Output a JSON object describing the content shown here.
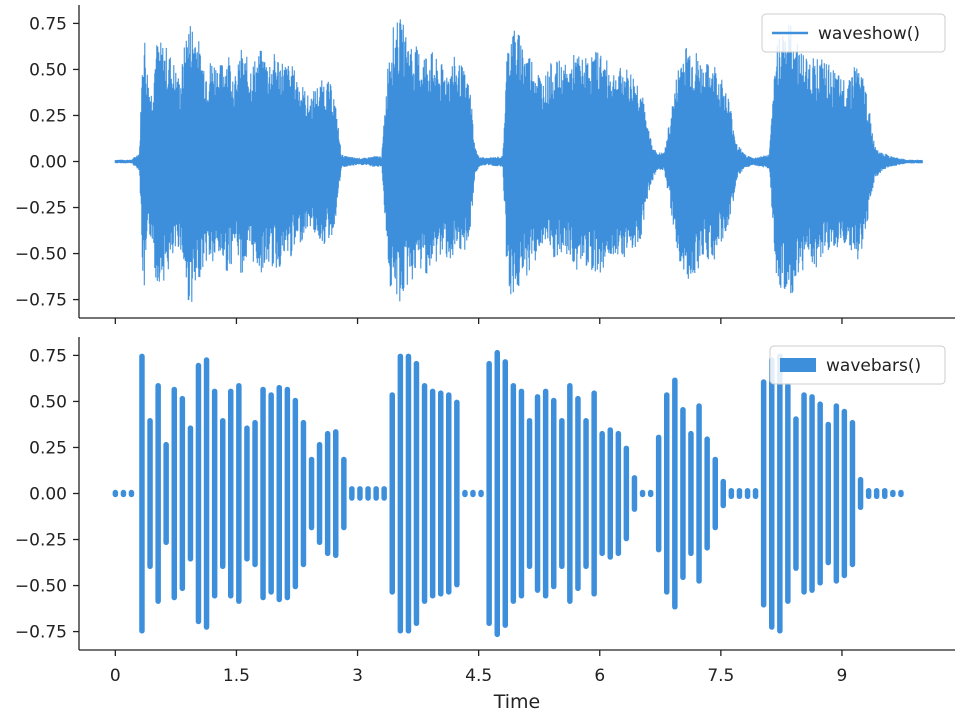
{
  "chart_data": [
    {
      "type": "line",
      "legend": {
        "entries": [
          "waveshow()"
        ],
        "placement": "top-right"
      },
      "color": "#3d8fdb",
      "xlim": [
        -0.45,
        10.4
      ],
      "ylim": [
        -0.85,
        0.85
      ],
      "yticks": [
        -0.75,
        -0.5,
        -0.25,
        0.0,
        0.25,
        0.5,
        0.75
      ],
      "ytick_labels": [
        "−0.75",
        "−0.50",
        "−0.25",
        "0.00",
        "0.25",
        "0.50",
        "0.75"
      ],
      "xticks": [
        0,
        1.5,
        3,
        4.5,
        6,
        7.5,
        9
      ],
      "xtick_labels_visible": false,
      "grid": false,
      "series": [
        {
          "x": [
            0.0,
            0.2,
            0.3,
            0.35,
            0.4,
            0.45,
            0.5,
            0.6,
            0.7,
            0.8,
            0.9,
            1.0,
            1.05,
            1.1,
            1.15,
            1.2,
            1.3,
            1.4,
            1.5,
            1.55,
            1.6,
            1.7,
            1.8,
            1.9,
            2.0,
            2.1,
            2.2,
            2.3,
            2.4,
            2.5,
            2.6,
            2.7,
            2.75,
            2.8,
            2.85,
            3.0,
            3.1,
            3.2,
            3.3,
            3.4,
            3.45,
            3.5,
            3.55,
            3.6,
            3.7,
            3.8,
            3.9,
            4.0,
            4.1,
            4.2,
            4.3,
            4.4,
            4.45,
            4.5,
            4.6,
            4.8,
            4.85,
            4.9,
            5.0,
            5.1,
            5.2,
            5.3,
            5.4,
            5.5,
            5.6,
            5.7,
            5.8,
            5.9,
            6.0,
            6.1,
            6.2,
            6.3,
            6.4,
            6.5,
            6.6,
            6.7,
            6.8,
            6.9,
            7.0,
            7.1,
            7.2,
            7.3,
            7.4,
            7.5,
            7.6,
            7.7,
            7.8,
            7.9,
            8.0,
            8.1,
            8.2,
            8.3,
            8.4,
            8.5,
            8.6,
            8.7,
            8.8,
            8.9,
            9.0,
            9.1,
            9.2,
            9.3,
            9.4,
            9.5,
            9.6,
            9.7,
            9.8,
            10.0
          ],
          "envelope_amplitude": [
            0.01,
            0.01,
            0.05,
            0.78,
            0.5,
            0.4,
            0.66,
            0.65,
            0.58,
            0.45,
            0.78,
            0.76,
            0.62,
            0.57,
            0.54,
            0.58,
            0.53,
            0.62,
            0.45,
            0.63,
            0.58,
            0.55,
            0.61,
            0.57,
            0.6,
            0.55,
            0.52,
            0.44,
            0.35,
            0.42,
            0.46,
            0.4,
            0.24,
            0.04,
            0.03,
            0.02,
            0.02,
            0.03,
            0.03,
            0.7,
            0.74,
            0.77,
            0.78,
            0.7,
            0.64,
            0.6,
            0.62,
            0.54,
            0.52,
            0.57,
            0.52,
            0.4,
            0.09,
            0.03,
            0.02,
            0.03,
            0.6,
            0.76,
            0.7,
            0.62,
            0.55,
            0.45,
            0.54,
            0.55,
            0.52,
            0.6,
            0.56,
            0.59,
            0.62,
            0.54,
            0.5,
            0.52,
            0.49,
            0.44,
            0.18,
            0.05,
            0.05,
            0.32,
            0.6,
            0.66,
            0.6,
            0.52,
            0.56,
            0.47,
            0.35,
            0.1,
            0.04,
            0.02,
            0.03,
            0.04,
            0.7,
            0.76,
            0.74,
            0.6,
            0.57,
            0.58,
            0.54,
            0.5,
            0.45,
            0.5,
            0.55,
            0.4,
            0.1,
            0.05,
            0.03,
            0.02,
            0.01,
            0.01
          ]
        }
      ]
    },
    {
      "type": "bar",
      "legend": {
        "entries": [
          "wavebars()"
        ],
        "placement": "top-right"
      },
      "color": "#3d8fdb",
      "xlabel": "Time",
      "xlim": [
        -0.45,
        10.4
      ],
      "ylim": [
        -0.85,
        0.85
      ],
      "yticks": [
        -0.75,
        -0.5,
        -0.25,
        0.0,
        0.25,
        0.5,
        0.75
      ],
      "ytick_labels": [
        "−0.75",
        "−0.50",
        "−0.25",
        "0.00",
        "0.25",
        "0.50",
        "0.75"
      ],
      "xticks": [
        0,
        1.5,
        3,
        4.5,
        6,
        7.5,
        9
      ],
      "xtick_labels": [
        "0",
        "1.5",
        "3",
        "4.5",
        "6",
        "7.5",
        "9"
      ],
      "grid": false,
      "series": [
        {
          "x": [
            0.0,
            0.1,
            0.2,
            0.33,
            0.43,
            0.53,
            0.63,
            0.73,
            0.83,
            0.93,
            1.03,
            1.13,
            1.23,
            1.33,
            1.43,
            1.53,
            1.63,
            1.73,
            1.83,
            1.93,
            2.03,
            2.13,
            2.23,
            2.33,
            2.43,
            2.53,
            2.63,
            2.73,
            2.83,
            2.93,
            3.03,
            3.13,
            3.23,
            3.33,
            3.43,
            3.53,
            3.63,
            3.73,
            3.83,
            3.93,
            4.03,
            4.13,
            4.23,
            4.33,
            4.43,
            4.53,
            4.63,
            4.73,
            4.83,
            4.93,
            5.03,
            5.13,
            5.23,
            5.33,
            5.43,
            5.53,
            5.63,
            5.73,
            5.83,
            5.93,
            6.03,
            6.13,
            6.23,
            6.33,
            6.43,
            6.53,
            6.63,
            6.73,
            6.83,
            6.93,
            7.03,
            7.13,
            7.23,
            7.33,
            7.43,
            7.53,
            7.63,
            7.73,
            7.83,
            7.93,
            8.03,
            8.13,
            8.23,
            8.33,
            8.43,
            8.53,
            8.63,
            8.73,
            8.83,
            8.93,
            9.03,
            9.13,
            9.23,
            9.33,
            9.43,
            9.53,
            9.63,
            9.73
          ],
          "values": [
            0.02,
            0.02,
            0.02,
            0.76,
            0.41,
            0.6,
            0.28,
            0.58,
            0.53,
            0.37,
            0.71,
            0.74,
            0.57,
            0.41,
            0.57,
            0.6,
            0.37,
            0.4,
            0.58,
            0.55,
            0.59,
            0.58,
            0.52,
            0.4,
            0.2,
            0.28,
            0.34,
            0.35,
            0.2,
            0.04,
            0.04,
            0.04,
            0.04,
            0.04,
            0.55,
            0.76,
            0.76,
            0.72,
            0.6,
            0.57,
            0.56,
            0.55,
            0.51,
            0.02,
            0.02,
            0.02,
            0.72,
            0.78,
            0.73,
            0.6,
            0.57,
            0.41,
            0.54,
            0.57,
            0.52,
            0.41,
            0.6,
            0.53,
            0.41,
            0.56,
            0.34,
            0.36,
            0.34,
            0.26,
            0.1,
            0.02,
            0.02,
            0.32,
            0.55,
            0.63,
            0.47,
            0.34,
            0.49,
            0.31,
            0.2,
            0.08,
            0.03,
            0.03,
            0.03,
            0.03,
            0.62,
            0.74,
            0.76,
            0.6,
            0.42,
            0.55,
            0.54,
            0.5,
            0.39,
            0.49,
            0.46,
            0.4,
            0.09,
            0.03,
            0.03,
            0.03,
            0.02,
            0.02
          ]
        }
      ]
    }
  ]
}
